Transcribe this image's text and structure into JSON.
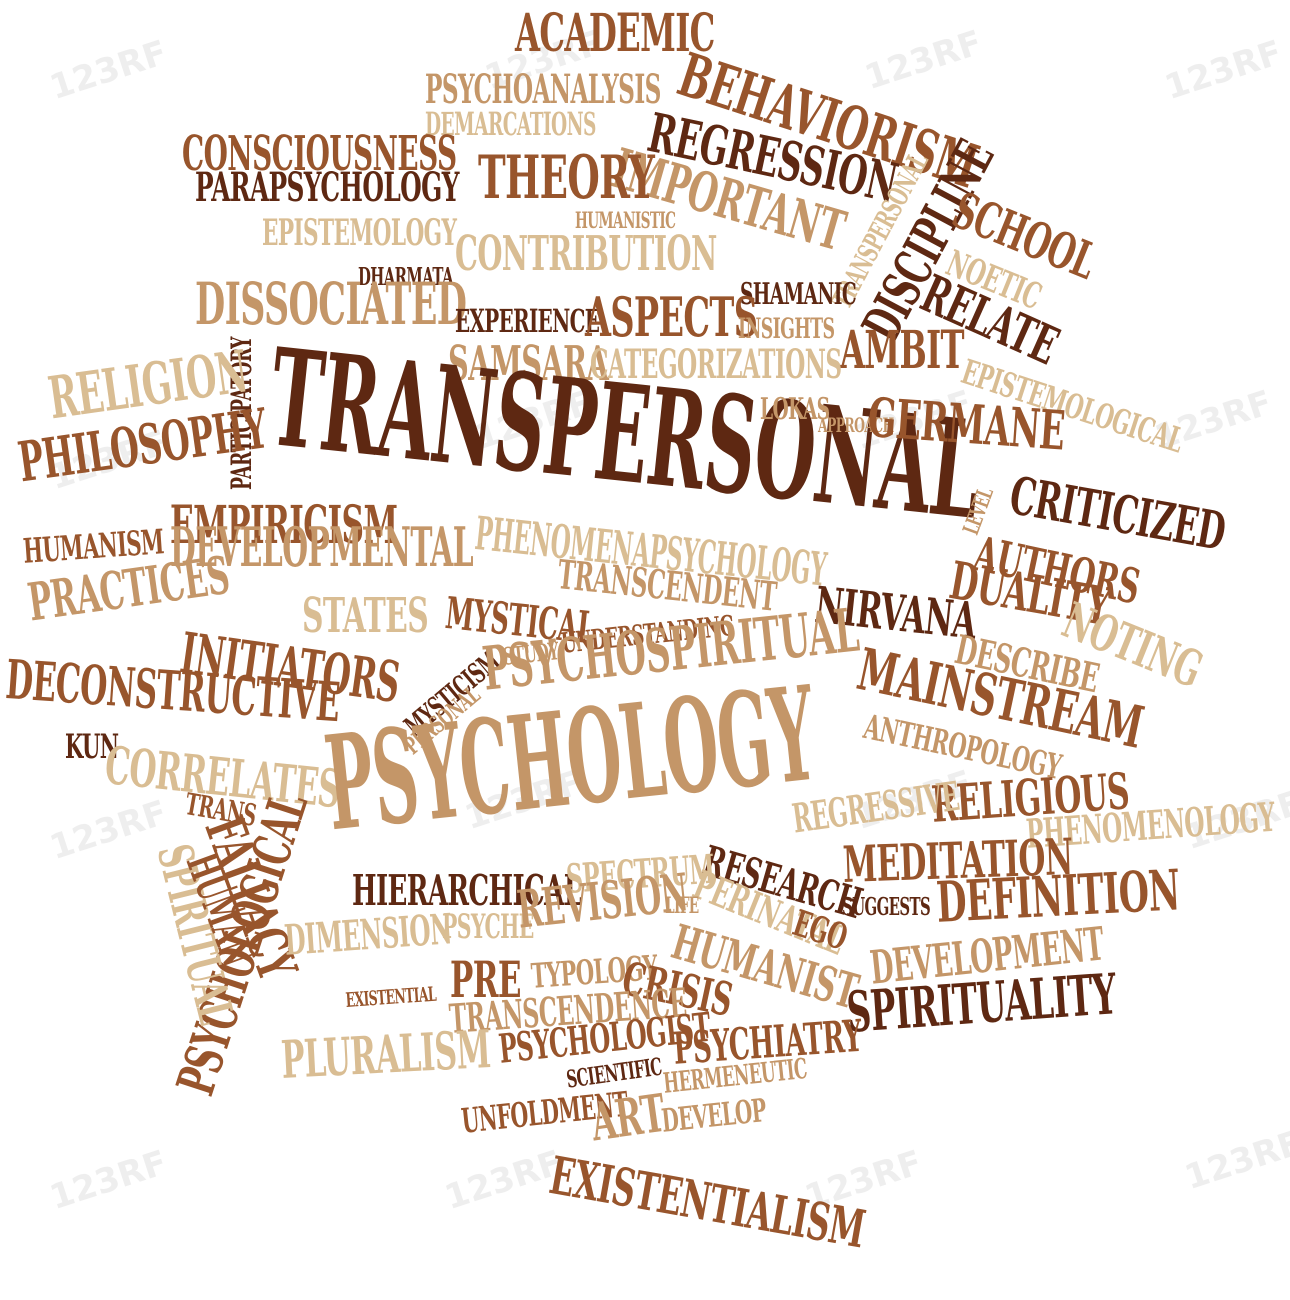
{
  "palette": {
    "dark": "#5e2812",
    "mid": "#98552c",
    "light": "#c49668",
    "pale": "#d9bd93",
    "background": "#ffffff"
  },
  "watermark_text": "123RF",
  "words": [
    {
      "text": "ACADEMIC",
      "tone": "mid"
    },
    {
      "text": "BEHAVIORISM",
      "tone": "mid"
    },
    {
      "text": "PSYCHOANALYSIS",
      "tone": "light"
    },
    {
      "text": "DEMARCATIONS",
      "tone": "pale"
    },
    {
      "text": "REGRESSION",
      "tone": "dark"
    },
    {
      "text": "CONSCIOUSNESS",
      "tone": "mid"
    },
    {
      "text": "IMPORTANT",
      "tone": "light"
    },
    {
      "text": "PARAPSYCHOLOGY",
      "tone": "dark"
    },
    {
      "text": "THEORY",
      "tone": "mid"
    },
    {
      "text": "TRANSPERSONAL",
      "tone": "pale"
    },
    {
      "text": "DISCIPLINE",
      "tone": "dark"
    },
    {
      "text": "SCHOOL",
      "tone": "mid"
    },
    {
      "text": "HUMANISTIC",
      "tone": "light"
    },
    {
      "text": "EPISTEMOLOGY",
      "tone": "pale"
    },
    {
      "text": "CONTRIBUTION",
      "tone": "pale"
    },
    {
      "text": "NOETIC",
      "tone": "pale"
    },
    {
      "text": "DHARMATA",
      "tone": "dark"
    },
    {
      "text": "SHAMANIC",
      "tone": "dark"
    },
    {
      "text": "RELATE",
      "tone": "dark"
    },
    {
      "text": "DISSOCIATED",
      "tone": "light"
    },
    {
      "text": "EXPERIENCE",
      "tone": "dark"
    },
    {
      "text": "ASPECTS",
      "tone": "mid"
    },
    {
      "text": "INSIGHTS",
      "tone": "light"
    },
    {
      "text": "AMBIT",
      "tone": "mid"
    },
    {
      "text": "EPISTEMOLOGICAL",
      "tone": "pale"
    },
    {
      "text": "PARTICIPATORY",
      "tone": "dark"
    },
    {
      "text": "SAMSARA",
      "tone": "light"
    },
    {
      "text": "CATEGORIZATIONS",
      "tone": "pale"
    },
    {
      "text": "TRANSPERSONAL",
      "tone": "dark"
    },
    {
      "text": "LOKAS",
      "tone": "light"
    },
    {
      "text": "APPROACH",
      "tone": "light"
    },
    {
      "text": "GERMANE",
      "tone": "mid"
    },
    {
      "text": "RELIGION",
      "tone": "pale"
    },
    {
      "text": "PHILOSOPHY",
      "tone": "mid"
    },
    {
      "text": "LEVEL",
      "tone": "light"
    },
    {
      "text": "CRITICIZED",
      "tone": "dark"
    },
    {
      "text": "EMPIRICISM",
      "tone": "mid"
    },
    {
      "text": "HUMANISM",
      "tone": "mid"
    },
    {
      "text": "DEVELOPMENTAL",
      "tone": "light"
    },
    {
      "text": "PHENOMENAPSYCHOLOGY",
      "tone": "pale"
    },
    {
      "text": "AUTHORS",
      "tone": "mid"
    },
    {
      "text": "PRACTICES",
      "tone": "light"
    },
    {
      "text": "TRANSCENDENT",
      "tone": "light"
    },
    {
      "text": "DUALITY",
      "tone": "mid"
    },
    {
      "text": "NOTING",
      "tone": "pale"
    },
    {
      "text": "STATES",
      "tone": "pale"
    },
    {
      "text": "MYSTICAL",
      "tone": "mid"
    },
    {
      "text": "NIRVANA",
      "tone": "dark"
    },
    {
      "text": "INITIATORS",
      "tone": "mid"
    },
    {
      "text": "DESCRIBE",
      "tone": "light"
    },
    {
      "text": "DECONSTRUCTIVE",
      "tone": "mid"
    },
    {
      "text": "MYSTICISM",
      "tone": "dark"
    },
    {
      "text": "STUDY",
      "tone": "light"
    },
    {
      "text": "UNDERSTANDING",
      "tone": "mid"
    },
    {
      "text": "MAINSTREAM",
      "tone": "mid"
    },
    {
      "text": "PERSONAL",
      "tone": "light"
    },
    {
      "text": "PSYCHOSPIRITUAL",
      "tone": "light"
    },
    {
      "text": "KUN",
      "tone": "dark"
    },
    {
      "text": "CORRELATES",
      "tone": "pale"
    },
    {
      "text": "ANTHROPOLOGY",
      "tone": "light"
    },
    {
      "text": "PSYCHOLOGY",
      "tone": "light"
    },
    {
      "text": "TRANS",
      "tone": "mid"
    },
    {
      "text": "PSYCHOLOGICAL",
      "tone": "mid"
    },
    {
      "text": "FALLACY",
      "tone": "mid"
    },
    {
      "text": "SPIRITUAL",
      "tone": "pale"
    },
    {
      "text": "HUMAN",
      "tone": "mid"
    },
    {
      "text": "RELIGIOUS",
      "tone": "mid"
    },
    {
      "text": "REGRESSIVE",
      "tone": "pale"
    },
    {
      "text": "PHENOMENOLOGY",
      "tone": "pale"
    },
    {
      "text": "MEDITATION",
      "tone": "mid"
    },
    {
      "text": "RESEARCH",
      "tone": "dark"
    },
    {
      "text": "HIERARCHICAL",
      "tone": "dark"
    },
    {
      "text": "SPECTRUM",
      "tone": "pale"
    },
    {
      "text": "PERINATAL",
      "tone": "pale"
    },
    {
      "text": "EGO",
      "tone": "mid"
    },
    {
      "text": "LIFE",
      "tone": "light"
    },
    {
      "text": "SUGGESTS",
      "tone": "dark"
    },
    {
      "text": "DEFINITION",
      "tone": "mid"
    },
    {
      "text": "DIMENSION",
      "tone": "pale"
    },
    {
      "text": "PSYCHE",
      "tone": "pale"
    },
    {
      "text": "REVISION",
      "tone": "light"
    },
    {
      "text": "HUMANIST",
      "tone": "light"
    },
    {
      "text": "EXISTENTIAL",
      "tone": "mid"
    },
    {
      "text": "PRE",
      "tone": "mid"
    },
    {
      "text": "TYPOLOGY",
      "tone": "light"
    },
    {
      "text": "CRISIS",
      "tone": "mid"
    },
    {
      "text": "DEVELOPMENT",
      "tone": "light"
    },
    {
      "text": "TRANSCENDENCE",
      "tone": "light"
    },
    {
      "text": "SPIRITUALITY",
      "tone": "dark"
    },
    {
      "text": "PLURALISM",
      "tone": "pale"
    },
    {
      "text": "PSYCHOLOGIST",
      "tone": "mid"
    },
    {
      "text": "PSYCHIATRY",
      "tone": "mid"
    },
    {
      "text": "SCIENTIFIC",
      "tone": "dark"
    },
    {
      "text": "HERMENEUTIC",
      "tone": "light"
    },
    {
      "text": "UNFOLDMENT",
      "tone": "mid"
    },
    {
      "text": "ART",
      "tone": "light"
    },
    {
      "text": "DEVELOP",
      "tone": "light"
    },
    {
      "text": "EXISTENTIALISM",
      "tone": "mid"
    }
  ]
}
